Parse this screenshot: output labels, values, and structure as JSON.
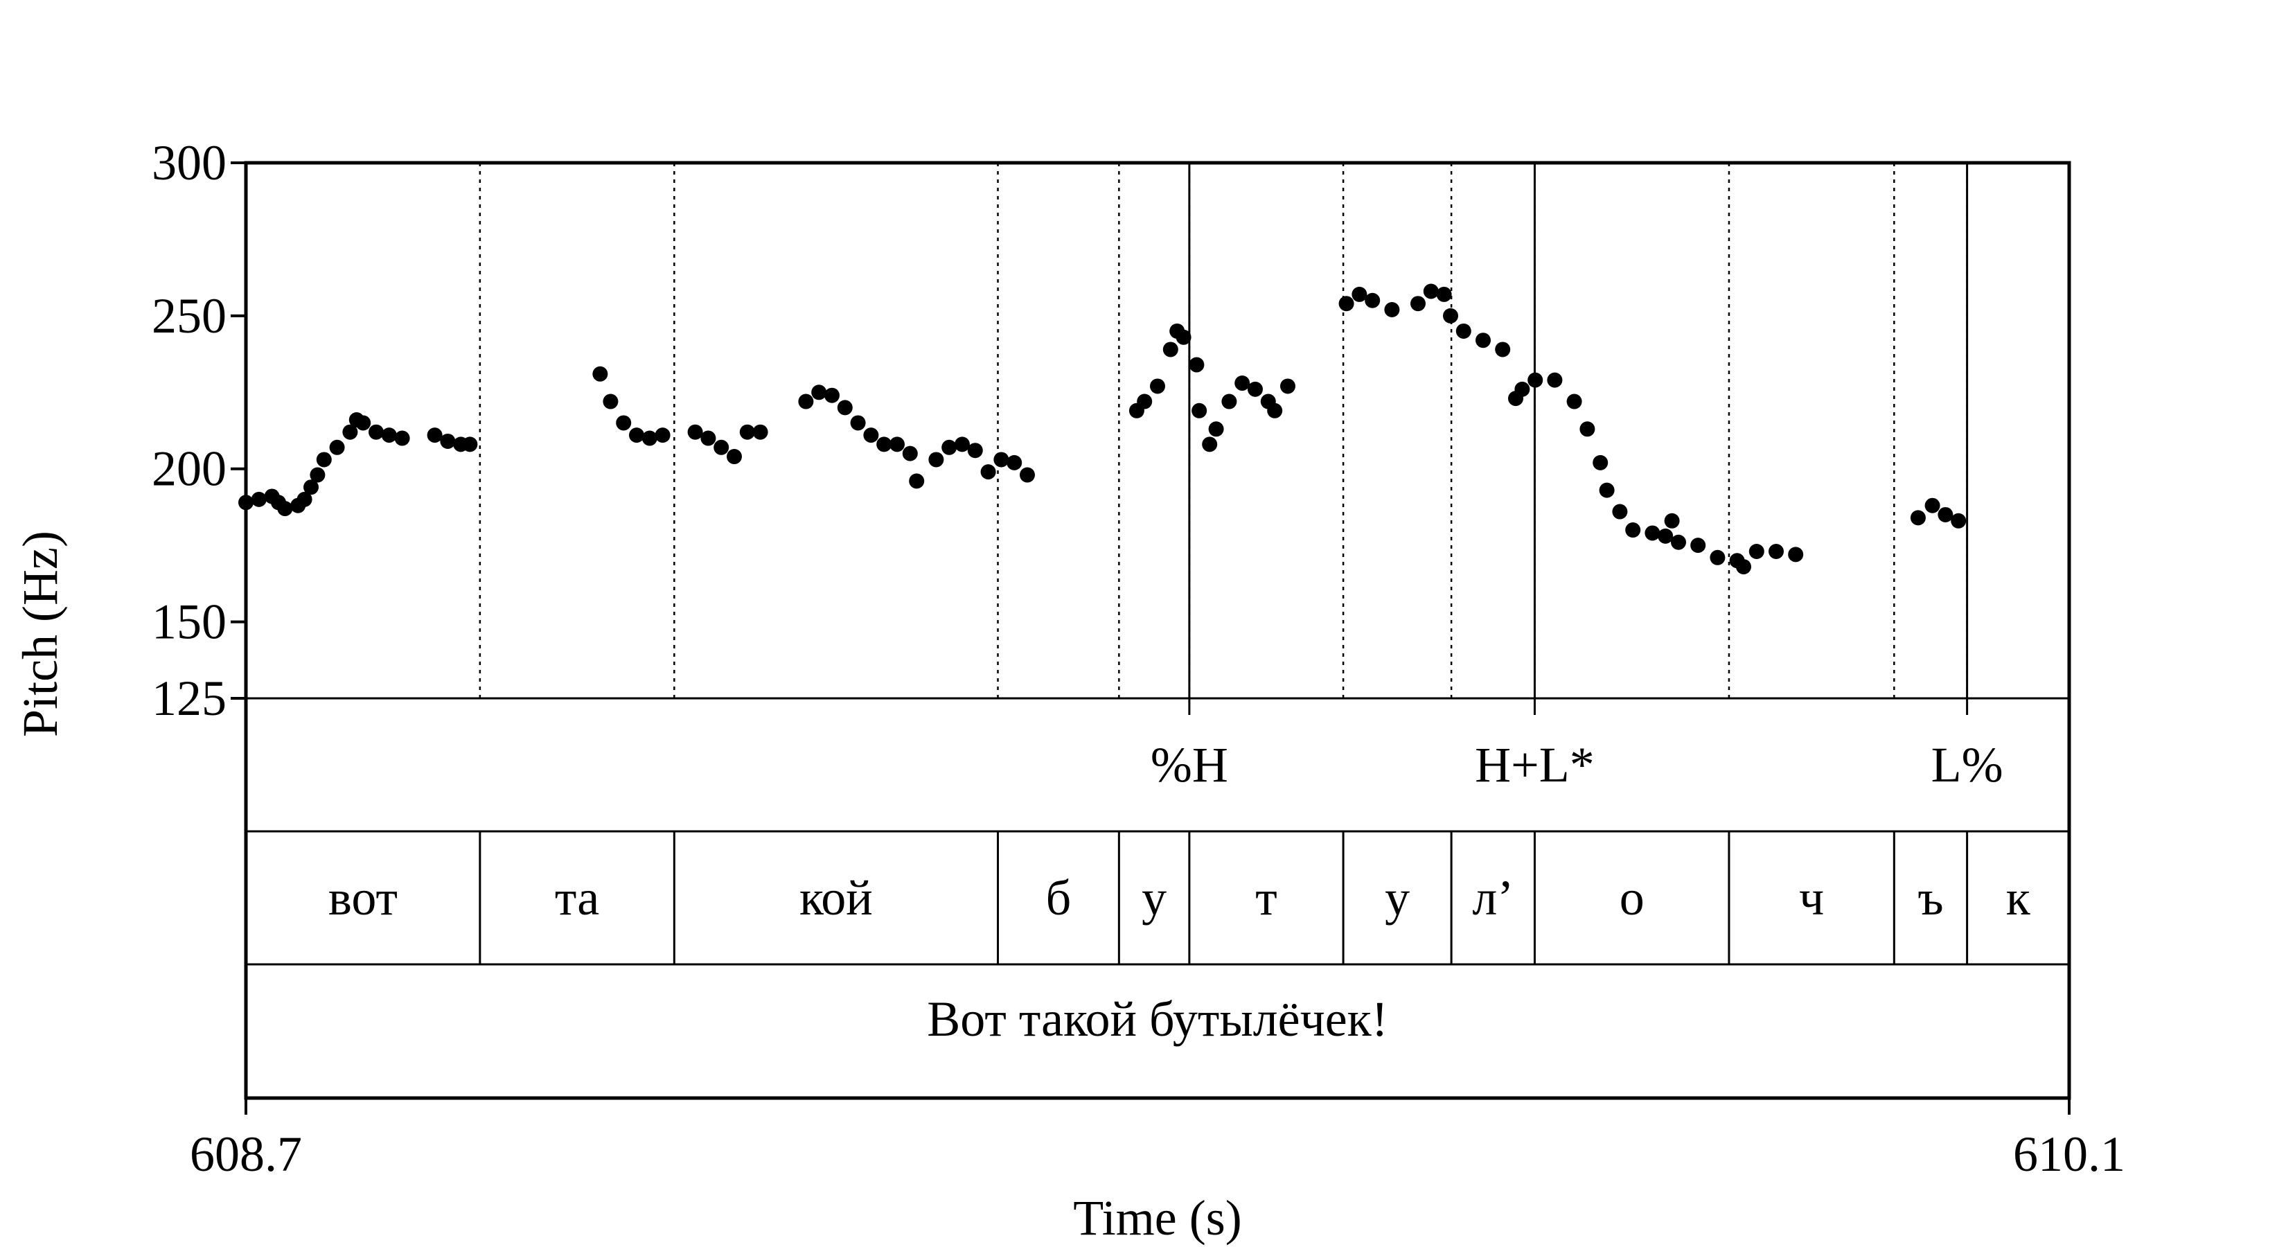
{
  "chart_data": {
    "type": "scatter",
    "xlabel": "Time (s)",
    "ylabel": "Pitch (Hz)",
    "xlim": [
      608.7,
      610.1
    ],
    "ylim": [
      125,
      300
    ],
    "x_tick_labels": [
      "608.7",
      "610.1"
    ],
    "y_ticks": [
      125,
      150,
      200,
      250,
      300
    ],
    "y_tick_labels": [
      "125",
      "150",
      "200",
      "250",
      "300"
    ],
    "segment_boundaries": [
      608.7,
      608.8797,
      609.0289,
      609.2774,
      609.3704,
      609.4244,
      609.5426,
      609.6256,
      609.6896,
      609.8388,
      609.9656,
      610.0216,
      610.1
    ],
    "segments": [
      "вот",
      "та",
      "кой",
      "б",
      "у",
      "т",
      "у",
      "л’",
      "о",
      "ч",
      "ъ",
      "к"
    ],
    "tones": [
      {
        "label": "%H",
        "time": 609.4244
      },
      {
        "label": "H+L*",
        "time": 609.6896
      },
      {
        "label": "L%",
        "time": 610.0216
      }
    ],
    "utterance": "Вот такой бутылёчек!",
    "series": [
      {
        "values": [
          [
            608.7,
            189
          ],
          [
            608.71,
            190
          ],
          [
            608.72,
            191
          ],
          [
            608.725,
            189
          ],
          [
            608.73,
            187
          ],
          [
            608.74,
            188
          ],
          [
            608.745,
            190
          ],
          [
            608.75,
            194
          ],
          [
            608.755,
            198
          ],
          [
            608.76,
            203
          ],
          [
            608.77,
            207
          ],
          [
            608.78,
            212
          ],
          [
            608.785,
            216
          ],
          [
            608.79,
            215
          ],
          [
            608.8,
            212
          ],
          [
            608.81,
            211
          ],
          [
            608.82,
            210
          ],
          [
            608.845,
            211
          ],
          [
            608.855,
            209
          ],
          [
            608.865,
            208
          ],
          [
            608.872,
            208
          ],
          [
            608.972,
            231
          ],
          [
            608.98,
            222
          ],
          [
            608.99,
            215
          ],
          [
            609.0,
            211
          ],
          [
            609.01,
            210
          ],
          [
            609.02,
            211
          ],
          [
            609.045,
            212
          ],
          [
            609.055,
            210
          ],
          [
            609.065,
            207
          ],
          [
            609.075,
            204
          ],
          [
            609.085,
            212
          ],
          [
            609.095,
            212
          ],
          [
            609.13,
            222
          ],
          [
            609.14,
            225
          ],
          [
            609.15,
            224
          ],
          [
            609.16,
            220
          ],
          [
            609.17,
            215
          ],
          [
            609.18,
            211
          ],
          [
            609.19,
            208
          ],
          [
            609.2,
            208
          ],
          [
            609.21,
            205
          ],
          [
            609.215,
            196
          ],
          [
            609.23,
            203
          ],
          [
            609.24,
            207
          ],
          [
            609.25,
            208
          ],
          [
            609.26,
            206
          ],
          [
            609.27,
            199
          ],
          [
            609.28,
            203
          ],
          [
            609.29,
            202
          ],
          [
            609.3,
            198
          ],
          [
            609.384,
            219
          ],
          [
            609.39,
            222
          ],
          [
            609.4,
            227
          ],
          [
            609.41,
            239
          ],
          [
            609.415,
            245
          ],
          [
            609.42,
            243
          ],
          [
            609.43,
            234
          ],
          [
            609.432,
            219
          ],
          [
            609.44,
            208
          ],
          [
            609.445,
            213
          ],
          [
            609.455,
            222
          ],
          [
            609.465,
            228
          ],
          [
            609.475,
            226
          ],
          [
            609.485,
            222
          ],
          [
            609.49,
            219
          ],
          [
            609.5,
            227
          ],
          [
            609.545,
            254
          ],
          [
            609.555,
            257
          ],
          [
            609.565,
            255
          ],
          [
            609.58,
            252
          ],
          [
            609.6,
            254
          ],
          [
            609.61,
            258
          ],
          [
            609.62,
            257
          ],
          [
            609.625,
            250
          ],
          [
            609.635,
            245
          ],
          [
            609.65,
            242
          ],
          [
            609.665,
            239
          ],
          [
            609.675,
            223
          ],
          [
            609.68,
            226
          ],
          [
            609.69,
            229
          ],
          [
            609.705,
            229
          ],
          [
            609.72,
            222
          ],
          [
            609.73,
            213
          ],
          [
            609.74,
            202
          ],
          [
            609.745,
            193
          ],
          [
            609.755,
            186
          ],
          [
            609.765,
            180
          ],
          [
            609.78,
            179
          ],
          [
            609.79,
            178
          ],
          [
            609.795,
            183
          ],
          [
            609.8,
            176
          ],
          [
            609.815,
            175
          ],
          [
            609.83,
            171
          ],
          [
            609.845,
            170
          ],
          [
            609.85,
            168
          ],
          [
            609.86,
            173
          ],
          [
            609.875,
            173
          ],
          [
            609.89,
            172
          ],
          [
            609.984,
            184
          ],
          [
            609.995,
            188
          ],
          [
            610.005,
            185
          ],
          [
            610.015,
            183
          ]
        ]
      }
    ]
  }
}
